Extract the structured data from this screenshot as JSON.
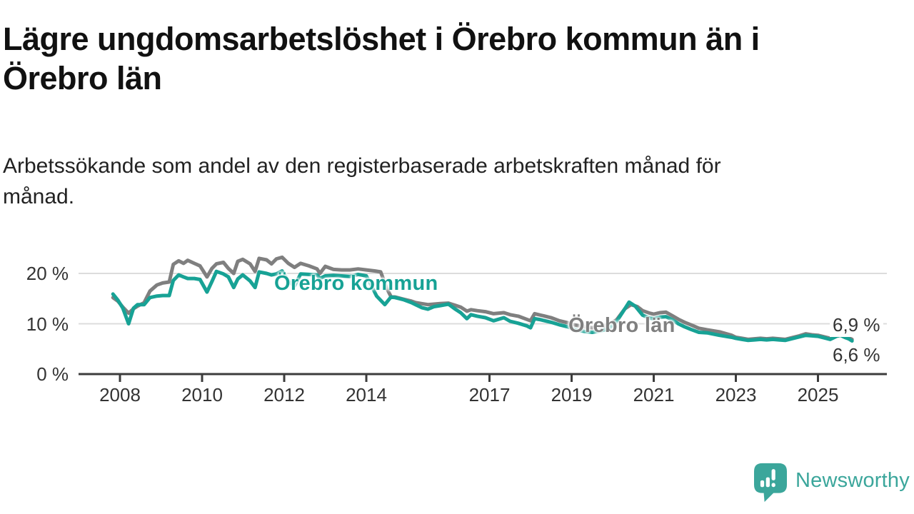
{
  "chart_data": {
    "type": "line",
    "title": "Lägre ungdomsarbetslöshet i Örebro kommun än i\nÖrebro län",
    "subtitle": "Arbetssökande som andel av den registerbaserade arbetskraften månad för\nmånad.",
    "unit": "%",
    "xlim": [
      2007.7,
      2026.8
    ],
    "ylim": [
      0,
      25
    ],
    "grid": "horizontal",
    "legend_position": "inline-labels",
    "yticks": [
      {
        "value": 0,
        "label": "0 %"
      },
      {
        "value": 10,
        "label": "10 %"
      },
      {
        "value": 20,
        "label": "20 %"
      }
    ],
    "xticks": [
      {
        "value": 2008,
        "label": "2008"
      },
      {
        "value": 2010,
        "label": "2010"
      },
      {
        "value": 2012,
        "label": "2012"
      },
      {
        "value": 2014,
        "label": "2014"
      },
      {
        "value": 2017,
        "label": "2017"
      },
      {
        "value": 2019,
        "label": "2019"
      },
      {
        "value": 2021,
        "label": "2021"
      },
      {
        "value": 2023,
        "label": "2023"
      },
      {
        "value": 2025,
        "label": "2025"
      }
    ],
    "series": [
      {
        "name": "Örebro län",
        "color": "#7f7f7f",
        "end_label": "6,9 %",
        "end_value": 6.9,
        "points": [
          [
            2007.83,
            15.2
          ],
          [
            2007.95,
            14.5
          ],
          [
            2008.07,
            13.3
          ],
          [
            2008.21,
            12.1
          ],
          [
            2008.33,
            13.0
          ],
          [
            2008.43,
            13.5
          ],
          [
            2008.59,
            14.2
          ],
          [
            2008.73,
            16.5
          ],
          [
            2008.9,
            17.7
          ],
          [
            2009.04,
            18.1
          ],
          [
            2009.2,
            18.3
          ],
          [
            2009.3,
            21.8
          ],
          [
            2009.43,
            22.5
          ],
          [
            2009.55,
            22.0
          ],
          [
            2009.65,
            22.6
          ],
          [
            2009.81,
            22.0
          ],
          [
            2009.95,
            21.5
          ],
          [
            2010.12,
            19.3
          ],
          [
            2010.24,
            21.0
          ],
          [
            2010.35,
            21.9
          ],
          [
            2010.52,
            22.2
          ],
          [
            2010.64,
            21.0
          ],
          [
            2010.77,
            20.0
          ],
          [
            2010.87,
            22.4
          ],
          [
            2010.99,
            22.8
          ],
          [
            2011.17,
            21.9
          ],
          [
            2011.29,
            20.4
          ],
          [
            2011.39,
            23.0
          ],
          [
            2011.57,
            22.7
          ],
          [
            2011.69,
            21.9
          ],
          [
            2011.81,
            22.9
          ],
          [
            2011.95,
            23.2
          ],
          [
            2012.1,
            22.0
          ],
          [
            2012.25,
            21.2
          ],
          [
            2012.4,
            22.0
          ],
          [
            2012.6,
            21.5
          ],
          [
            2012.8,
            20.9
          ],
          [
            2012.87,
            20.0
          ],
          [
            2013.0,
            21.4
          ],
          [
            2013.2,
            20.8
          ],
          [
            2013.4,
            20.7
          ],
          [
            2013.6,
            20.7
          ],
          [
            2013.8,
            20.9
          ],
          [
            2014.0,
            20.7
          ],
          [
            2014.2,
            20.5
          ],
          [
            2014.35,
            20.3
          ],
          [
            2014.5,
            17.0
          ],
          [
            2014.6,
            15.4
          ],
          [
            2014.7,
            15.3
          ],
          [
            2014.9,
            14.9
          ],
          [
            2015.1,
            14.5
          ],
          [
            2015.2,
            14.2
          ],
          [
            2015.35,
            14.0
          ],
          [
            2015.5,
            13.8
          ],
          [
            2015.65,
            13.9
          ],
          [
            2015.8,
            14.0
          ],
          [
            2016.0,
            14.1
          ],
          [
            2016.15,
            13.7
          ],
          [
            2016.3,
            13.3
          ],
          [
            2016.45,
            12.5
          ],
          [
            2016.55,
            12.8
          ],
          [
            2016.7,
            12.6
          ],
          [
            2016.9,
            12.4
          ],
          [
            2017.1,
            12.0
          ],
          [
            2017.35,
            12.2
          ],
          [
            2017.5,
            11.8
          ],
          [
            2017.7,
            11.5
          ],
          [
            2017.9,
            10.9
          ],
          [
            2018.0,
            10.6
          ],
          [
            2018.1,
            12.0
          ],
          [
            2018.25,
            11.7
          ],
          [
            2018.5,
            11.2
          ],
          [
            2018.7,
            10.6
          ],
          [
            2018.9,
            10.2
          ],
          [
            2019.1,
            9.7
          ],
          [
            2019.3,
            9.4
          ],
          [
            2019.5,
            9.2
          ],
          [
            2019.7,
            9.4
          ],
          [
            2019.9,
            9.8
          ],
          [
            2020.1,
            10.8
          ],
          [
            2020.3,
            13.0
          ],
          [
            2020.45,
            13.8
          ],
          [
            2020.6,
            13.4
          ],
          [
            2020.73,
            12.6
          ],
          [
            2020.9,
            12.1
          ],
          [
            2021.0,
            11.9
          ],
          [
            2021.15,
            12.2
          ],
          [
            2021.3,
            12.3
          ],
          [
            2021.45,
            11.6
          ],
          [
            2021.6,
            10.9
          ],
          [
            2021.75,
            10.3
          ],
          [
            2021.9,
            9.8
          ],
          [
            2022.1,
            9.1
          ],
          [
            2022.3,
            8.8
          ],
          [
            2022.6,
            8.4
          ],
          [
            2022.9,
            7.7
          ],
          [
            2023.0,
            7.3
          ],
          [
            2023.15,
            7.1
          ],
          [
            2023.3,
            6.9
          ],
          [
            2023.45,
            7.0
          ],
          [
            2023.6,
            7.1
          ],
          [
            2023.75,
            7.0
          ],
          [
            2023.9,
            7.1
          ],
          [
            2024.05,
            7.0
          ],
          [
            2024.2,
            6.9
          ],
          [
            2024.4,
            7.3
          ],
          [
            2024.55,
            7.6
          ],
          [
            2024.7,
            8.0
          ],
          [
            2024.85,
            7.8
          ],
          [
            2025.0,
            7.7
          ],
          [
            2025.15,
            7.4
          ],
          [
            2025.3,
            7.1
          ],
          [
            2025.45,
            7.7
          ],
          [
            2025.55,
            7.9
          ],
          [
            2025.65,
            7.5
          ],
          [
            2025.75,
            7.2
          ],
          [
            2025.83,
            6.9
          ]
        ]
      },
      {
        "name": "Örebro kommun",
        "color": "#17a295",
        "end_label": "6,6 %",
        "end_value": 6.6,
        "points": [
          [
            2007.83,
            15.9
          ],
          [
            2007.95,
            14.7
          ],
          [
            2008.07,
            13.1
          ],
          [
            2008.21,
            10.0
          ],
          [
            2008.33,
            13.1
          ],
          [
            2008.43,
            13.8
          ],
          [
            2008.59,
            13.8
          ],
          [
            2008.73,
            15.2
          ],
          [
            2008.9,
            15.5
          ],
          [
            2009.04,
            15.6
          ],
          [
            2009.2,
            15.6
          ],
          [
            2009.3,
            18.6
          ],
          [
            2009.43,
            19.7
          ],
          [
            2009.55,
            19.3
          ],
          [
            2009.65,
            19.0
          ],
          [
            2009.81,
            19.0
          ],
          [
            2009.95,
            18.8
          ],
          [
            2010.12,
            16.3
          ],
          [
            2010.24,
            18.4
          ],
          [
            2010.35,
            20.4
          ],
          [
            2010.52,
            19.9
          ],
          [
            2010.64,
            19.3
          ],
          [
            2010.77,
            17.2
          ],
          [
            2010.87,
            18.9
          ],
          [
            2010.99,
            19.7
          ],
          [
            2011.17,
            18.5
          ],
          [
            2011.29,
            17.2
          ],
          [
            2011.39,
            20.3
          ],
          [
            2011.57,
            20.0
          ],
          [
            2011.69,
            19.7
          ],
          [
            2011.81,
            19.9
          ],
          [
            2011.95,
            20.5
          ],
          [
            2012.1,
            18.5
          ],
          [
            2012.25,
            17.5
          ],
          [
            2012.4,
            19.9
          ],
          [
            2012.6,
            19.8
          ],
          [
            2012.8,
            19.7
          ],
          [
            2012.87,
            19.0
          ],
          [
            2013.0,
            19.5
          ],
          [
            2013.2,
            19.6
          ],
          [
            2013.4,
            19.5
          ],
          [
            2013.6,
            19.4
          ],
          [
            2013.8,
            19.8
          ],
          [
            2014.0,
            19.5
          ],
          [
            2014.1,
            18.0
          ],
          [
            2014.25,
            15.5
          ],
          [
            2014.45,
            13.8
          ],
          [
            2014.6,
            15.3
          ],
          [
            2014.7,
            15.2
          ],
          [
            2014.9,
            14.8
          ],
          [
            2015.1,
            14.2
          ],
          [
            2015.2,
            13.8
          ],
          [
            2015.35,
            13.2
          ],
          [
            2015.5,
            12.9
          ],
          [
            2015.65,
            13.4
          ],
          [
            2015.8,
            13.6
          ],
          [
            2016.0,
            13.9
          ],
          [
            2016.15,
            13.0
          ],
          [
            2016.3,
            12.2
          ],
          [
            2016.45,
            11.0
          ],
          [
            2016.55,
            11.8
          ],
          [
            2016.7,
            11.5
          ],
          [
            2016.9,
            11.2
          ],
          [
            2017.1,
            10.6
          ],
          [
            2017.35,
            11.2
          ],
          [
            2017.5,
            10.5
          ],
          [
            2017.7,
            10.1
          ],
          [
            2017.9,
            9.6
          ],
          [
            2018.0,
            9.2
          ],
          [
            2018.1,
            11.0
          ],
          [
            2018.25,
            10.8
          ],
          [
            2018.5,
            10.3
          ],
          [
            2018.7,
            9.8
          ],
          [
            2018.9,
            9.4
          ],
          [
            2019.1,
            8.8
          ],
          [
            2019.3,
            8.5
          ],
          [
            2019.5,
            8.3
          ],
          [
            2019.7,
            8.6
          ],
          [
            2019.9,
            9.0
          ],
          [
            2020.1,
            10.5
          ],
          [
            2020.3,
            13.0
          ],
          [
            2020.4,
            14.3
          ],
          [
            2020.55,
            13.5
          ],
          [
            2020.73,
            11.7
          ],
          [
            2020.9,
            11.1
          ],
          [
            2021.0,
            11.0
          ],
          [
            2021.15,
            11.3
          ],
          [
            2021.3,
            11.4
          ],
          [
            2021.45,
            10.8
          ],
          [
            2021.6,
            10.0
          ],
          [
            2021.75,
            9.4
          ],
          [
            2021.9,
            8.9
          ],
          [
            2022.1,
            8.3
          ],
          [
            2022.3,
            8.2
          ],
          [
            2022.6,
            7.7
          ],
          [
            2022.9,
            7.3
          ],
          [
            2023.0,
            7.1
          ],
          [
            2023.15,
            6.9
          ],
          [
            2023.3,
            6.7
          ],
          [
            2023.45,
            6.8
          ],
          [
            2023.6,
            6.9
          ],
          [
            2023.75,
            6.8
          ],
          [
            2023.9,
            6.9
          ],
          [
            2024.05,
            6.8
          ],
          [
            2024.2,
            6.7
          ],
          [
            2024.4,
            7.1
          ],
          [
            2024.55,
            7.4
          ],
          [
            2024.7,
            7.7
          ],
          [
            2024.85,
            7.6
          ],
          [
            2025.0,
            7.5
          ],
          [
            2025.15,
            7.2
          ],
          [
            2025.3,
            6.9
          ],
          [
            2025.45,
            7.5
          ],
          [
            2025.55,
            7.7
          ],
          [
            2025.65,
            7.3
          ],
          [
            2025.75,
            7.0
          ],
          [
            2025.83,
            6.6
          ]
        ]
      }
    ]
  },
  "footer": {
    "brand": "Newsworthy"
  },
  "colors": {
    "accent_teal": "#17a295",
    "series_gray": "#7f7f7f",
    "logo_teal": "#3ba69b",
    "axis": "#3c3c3c",
    "gridline": "#dcdcdc",
    "title_text": "#111111",
    "tick_text": "#333333"
  }
}
